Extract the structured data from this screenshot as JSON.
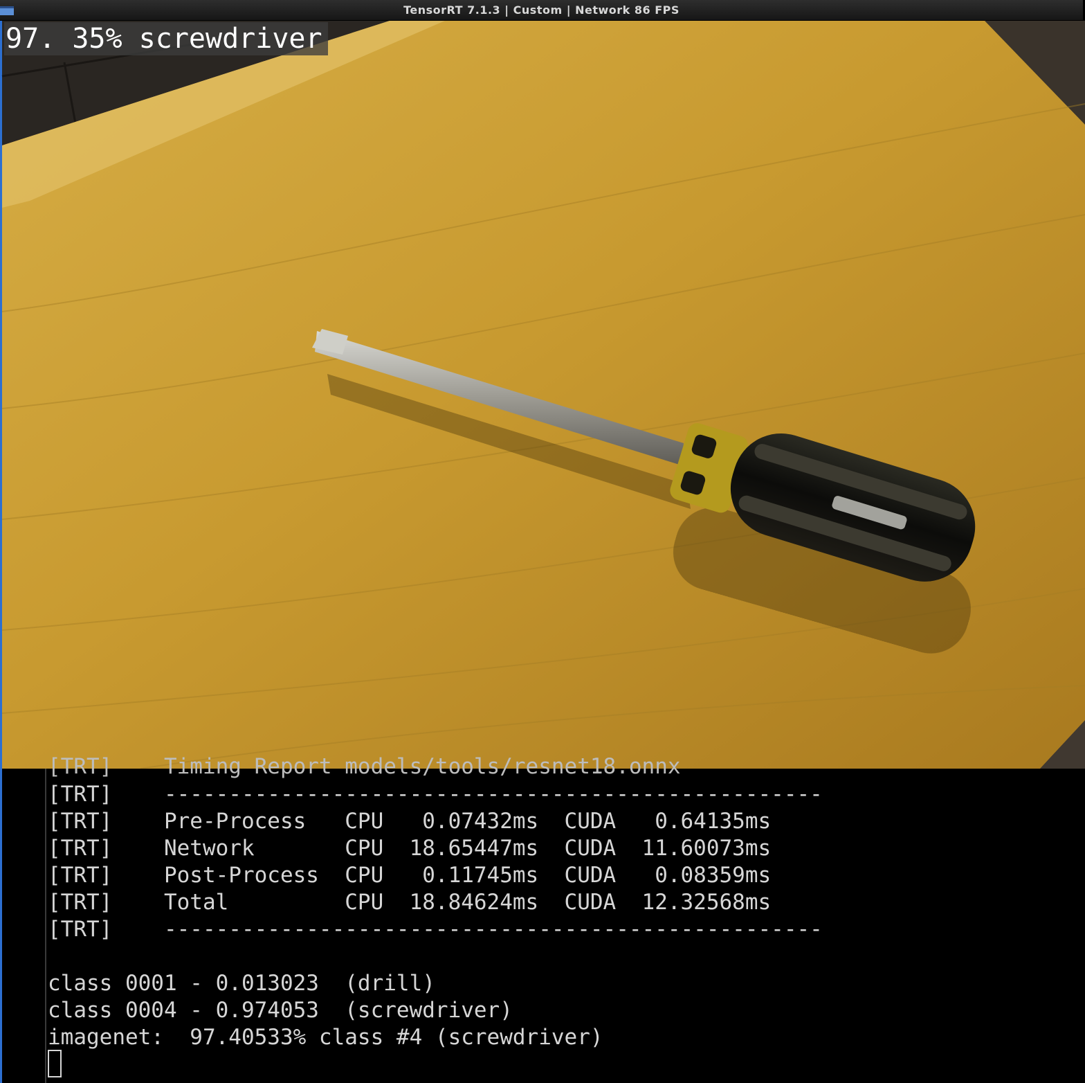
{
  "window": {
    "title": "TensorRT 7.1.3 | Custom | Network 86 FPS"
  },
  "viewport": {
    "overlay_label": "97. 35% screwdriver",
    "subject": "screwdriver-on-wooden-board"
  },
  "terminal": {
    "clipped_line": "[TRT]    Timing Report models/tools/resnet18.onnx",
    "report_lines": [
      "[TRT]    ---------------------------------------------------",
      "[TRT]    Pre-Process   CPU   0.07432ms  CUDA   0.64135ms",
      "[TRT]    Network       CPU  18.65447ms  CUDA  11.60073ms",
      "[TRT]    Post-Process  CPU   0.11745ms  CUDA   0.08359ms",
      "[TRT]    Total         CPU  18.84624ms  CUDA  12.32568ms",
      "[TRT]    ---------------------------------------------------"
    ],
    "class_lines": [
      "class 0001 - 0.013023  (drill)",
      "class 0004 - 0.974053  (screwdriver)",
      "imagenet:  97.40533% class #4 (screwdriver)"
    ]
  },
  "colors": {
    "board": "#c79a2e",
    "terminal_bg": "#000000",
    "terminal_text": "#d6d6d6",
    "titlebar_text": "#d8d8d8",
    "accent_border": "#2c6fd1"
  }
}
